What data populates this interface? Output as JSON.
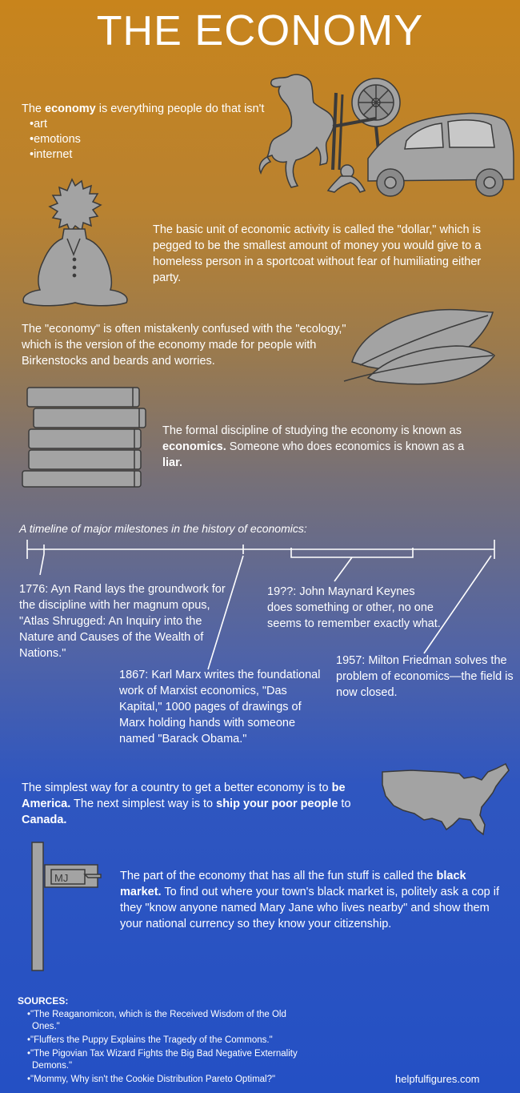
{
  "title": {
    "the": "THE",
    "economy": "ECONOMY"
  },
  "intro": {
    "text_before": "The ",
    "bold": "economy",
    "text_after": " is everything people do that isn't",
    "items": [
      "•art",
      "•emotions",
      "•internet"
    ]
  },
  "dollar": {
    "text": "The basic unit of economic activity is called the \"dollar,\" which is pegged to be the smallest amount of money you would give to a homeless person in a sportcoat without fear of humiliating either party."
  },
  "ecology": {
    "text": "The \"economy\" is often mistakenly confused with the \"ecology,\" which is the version of the economy made for people with Birkenstocks and beards and worries."
  },
  "economics": {
    "t1": "The formal discipline of studying the economy is known as ",
    "b1": "economics.",
    "t2": " Someone who does economics is known as a ",
    "b2": "liar."
  },
  "timeline": {
    "caption": "A timeline of major milestones in the history of economics:",
    "e1776": "1776: Ayn Rand lays the groundwork for the discipline with her magnum opus, \"Atlas Shrugged: An Inquiry into the Nature and Causes of the Wealth of Nations.\"",
    "e1867": "1867: Karl Marx writes the foundational work of Marxist economics, \"Das Kapital,\" 1000 pages of drawings of Marx holding hands with someone named \"Barack Obama.\"",
    "e19xx": "19??: John Maynard Keynes does something or other, no one seems to remember exactly what.",
    "e1957": "1957: Milton Friedman solves the problem of economics—the field is now closed."
  },
  "america": {
    "t1": "The simplest way for a country to get a better economy is to ",
    "b1": "be America.",
    "t2": " The next simplest way is to ",
    "b2": "ship your poor people",
    "t3": " to ",
    "b3": "Canada."
  },
  "mailbox": {
    "label": "MJ"
  },
  "black": {
    "t1": "The part of the economy that has all the fun stuff is called the ",
    "b1": "black market.",
    "t2": "  To find out where your town's black market is, politely ask a cop if they \"know anyone named Mary Jane who lives nearby\" and show them your national currency so they know your citizenship."
  },
  "sources": {
    "title": "SOURCES:",
    "items": [
      "•\"The Reaganomicon, which is the Received Wisdom of the Old Ones.\"",
      "•\"Fluffers the Puppy Explains the Tragedy of the Commons.\"",
      "•\"The Pigovian Tax Wizard Fights the Big Bad Negative Externality Demons.\"",
      "•\"Mommy, Why isn't the Cookie Distribution Pareto Optimal?\""
    ]
  },
  "footer": "helpfulfigures.com",
  "colors": {
    "figure_fill": "#a3a3a3",
    "figure_stroke": "#3a3a3a",
    "top": "#c8841c",
    "bottom": "#2450c4"
  },
  "icons": [
    "horse-icon",
    "spinning-wheel-icon",
    "car-icon",
    "baby-icon",
    "sitting-man-icon",
    "leaves-icon",
    "books-icon",
    "usa-map-icon",
    "mailbox-icon"
  ]
}
